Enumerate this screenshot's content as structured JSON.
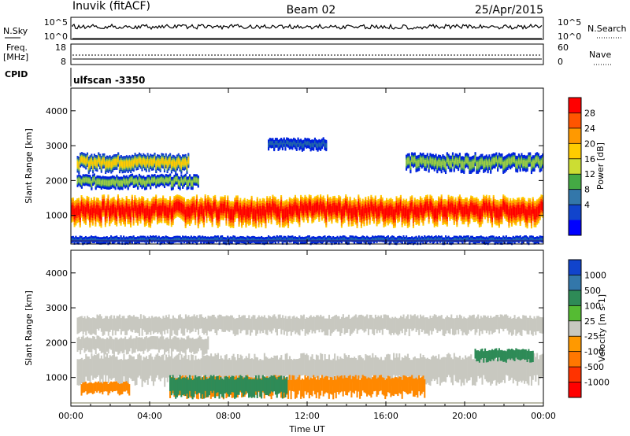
{
  "header": {
    "station": "Inuvik (fitACF)",
    "beam": "Beam 02",
    "date": "25/Apr/2015"
  },
  "noise_panel": {
    "left_label": "N.Sky",
    "right_label": "N.Search",
    "left_ticks": [
      "10^5",
      "10^0"
    ],
    "right_ticks": [
      "10^5",
      "10^0"
    ]
  },
  "freq_panel": {
    "left_label_1": "Freq.",
    "left_label_2": "[MHz]",
    "right_label": "Nave",
    "left_ticks": [
      "18",
      "8"
    ],
    "right_ticks": [
      "60",
      "0"
    ]
  },
  "cpid_panel": {
    "label": "CPID",
    "value": "ulfscan -3350"
  },
  "chart_data": [
    {
      "type": "heatmap",
      "name": "power",
      "ylabel": "Slant Range [km]",
      "yticks": [
        1000,
        2000,
        3000,
        4000
      ],
      "ylim": [
        180,
        4650
      ],
      "xlim": [
        0,
        24
      ],
      "xticks": [
        "00:00",
        "04:00",
        "08:00",
        "12:00",
        "16:00",
        "20:00",
        "00:00"
      ],
      "colorbar_label": "Power [dB]",
      "colorbar_ticks": [
        "28",
        "24",
        "20",
        "16",
        "12",
        "8",
        "4"
      ],
      "colorbar_colors": [
        "#ff0000",
        "#ff5500",
        "#ff9900",
        "#ffcc00",
        "#ccdd33",
        "#44aa44",
        "#3377aa",
        "#1144cc",
        "#0000ff"
      ],
      "bands": [
        {
          "label": "main echo band",
          "x_start": 0,
          "x_end": 24,
          "range_low": 800,
          "range_high": 1500,
          "level_db": 28
        },
        {
          "label": "upper band",
          "x_start": 0.3,
          "x_end": 6,
          "range_low": 2300,
          "range_high": 2750,
          "level_db": 14
        },
        {
          "label": "upper band late",
          "x_start": 17,
          "x_end": 24,
          "range_low": 2300,
          "range_high": 2750,
          "level_db": 12
        },
        {
          "label": "mid band",
          "x_start": 0.3,
          "x_end": 6.5,
          "range_low": 1800,
          "range_high": 2150,
          "level_db": 12
        },
        {
          "label": "near range",
          "x_start": 0,
          "x_end": 24,
          "range_low": 200,
          "range_high": 400,
          "level_db": 5
        },
        {
          "label": "high range patch",
          "x_start": 10,
          "x_end": 13,
          "range_low": 2900,
          "range_high": 3200,
          "level_db": 6
        }
      ]
    },
    {
      "type": "heatmap",
      "name": "velocity",
      "ylabel": "Slant Range [km]",
      "yticks": [
        1000,
        2000,
        3000,
        4000
      ],
      "ylim": [
        180,
        4650
      ],
      "xlim": [
        0,
        24
      ],
      "xticks": [
        "00:00",
        "04:00",
        "08:00",
        "12:00",
        "16:00",
        "20:00",
        "00:00"
      ],
      "xlabel": "Time UT",
      "colorbar_label": "Velocity [m s-1]",
      "colorbar_ticks": [
        "1000",
        "500",
        "100",
        "25",
        "-25",
        "-100",
        "-500",
        "-1000"
      ],
      "colorbar_colors": [
        "#1144cc",
        "#3377aa",
        "#2e8b57",
        "#55bb33",
        "#c8c8c0",
        "#ff9900",
        "#ff7700",
        "#ff3300",
        "#ff0000"
      ],
      "bands": [
        {
          "label": "ground scatter band",
          "x_start": 0.3,
          "x_end": 24,
          "range_low": 900,
          "range_high": 1600,
          "velocity": 0
        },
        {
          "label": "upper grey band",
          "x_start": 0.3,
          "x_end": 24,
          "range_low": 2300,
          "range_high": 2750,
          "velocity": 0
        },
        {
          "label": "mid grey band",
          "x_start": 0.3,
          "x_end": 7,
          "range_low": 1750,
          "range_high": 2150,
          "velocity": 0
        },
        {
          "label": "negative patches",
          "x_start": 5,
          "x_end": 18,
          "range_low": 500,
          "range_high": 1000,
          "velocity": -300
        },
        {
          "label": "positive patches",
          "x_start": 5,
          "x_end": 11,
          "range_low": 500,
          "range_high": 1000,
          "velocity": 300
        },
        {
          "label": "early negative patch",
          "x_start": 0.5,
          "x_end": 3,
          "range_low": 550,
          "range_high": 850,
          "velocity": -300
        },
        {
          "label": "late positive patch",
          "x_start": 20.5,
          "x_end": 23.5,
          "range_low": 1500,
          "range_high": 1800,
          "velocity": 200
        }
      ]
    }
  ]
}
